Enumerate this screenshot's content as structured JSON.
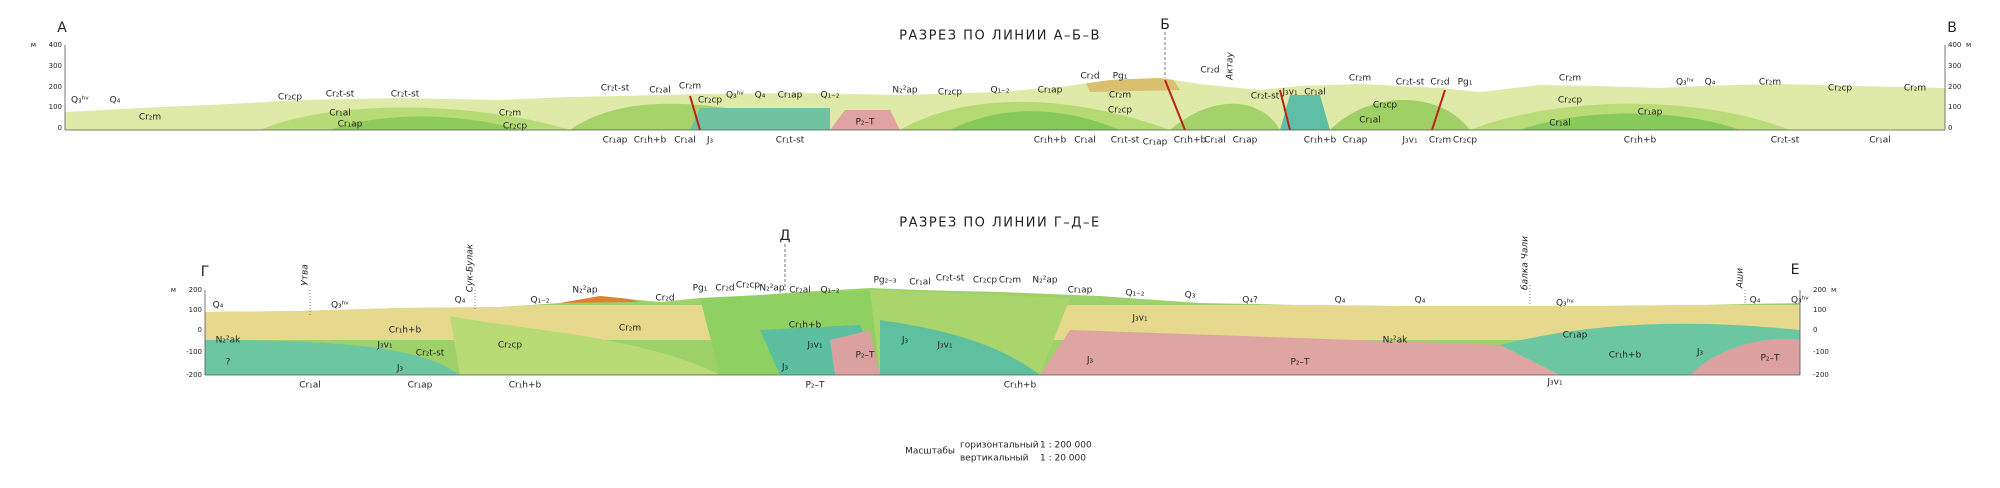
{
  "sections": [
    {
      "title": "РАЗРЕЗ ПО ЛИНИИ А–Б–В",
      "points": [
        "А",
        "Б",
        "В"
      ],
      "unit": "м",
      "ticks": [
        "400",
        "300",
        "200",
        "100",
        "0"
      ],
      "place_names": [
        "Актау"
      ],
      "formations": [
        "Q₃ʰᵛ",
        "Q₄",
        "Cr₂m",
        "Cr₂cp",
        "Cr₂t-st",
        "Cr₂t-st",
        "Cr₁al",
        "Cr₁ap",
        "Cr₂m",
        "Cr₂cp",
        "Cr₂t-st",
        "Cr₂al",
        "Cr₂m",
        "Cr₂cp",
        "Q₃ʰᵛ",
        "Q₄",
        "Cr₁ap",
        "Q₁₋₂",
        "N₂²ap",
        "Cr₂cp",
        "Q₁₋₂",
        "Cr₁ap",
        "Cr₂d",
        "Pg₁",
        "Cr₂d",
        "Cr₂m",
        "Cr₂cp",
        "P₂–T",
        "Cr₁ap",
        "Cr₁h+b",
        "Cr₁al",
        "J₃",
        "Cr₁t-st",
        "Cr₁h+b",
        "Cr₁al",
        "Cr₁t-st",
        "Cr₁ap",
        "Cr₁h+b",
        "Cr₁al",
        "Cr₁ap",
        "Cr₂t-st",
        "J₃v₁",
        "Cr₁al",
        "Cr₂m",
        "Cr₂t-st",
        "Cr₂d",
        "Pg₁",
        "Cr₂cp",
        "Cr₁al",
        "Cr₁h+b",
        "Cr₁ap",
        "J₃v₁",
        "Cr₂m",
        "Cr₂cp",
        "Cr₂m",
        "Cr₂cp",
        "Cr₁al",
        "Cr₁ap",
        "Q₃ʰᵛ",
        "Q₄",
        "Cr₂m",
        "Cr₂cp",
        "Cr₂m",
        "Cr₁h+b",
        "Cr₂t-st",
        "Cr₁al"
      ]
    },
    {
      "title": "РАЗРЕЗ ПО ЛИНИИ Г–Д–Е",
      "points": [
        "Г",
        "Д",
        "Е"
      ],
      "unit": "м",
      "ticks": [
        "200",
        "100",
        "0",
        "-100",
        "-200"
      ],
      "place_names": [
        "Утва",
        "Сук-Булак",
        "балка Чали",
        "Аши"
      ],
      "formations": [
        "Q₄",
        "Q₃ʰᵛ",
        "Cr₁h+b",
        "J₃v₁",
        "Cr₂t-st",
        "N₂²ak",
        "?",
        "J₃",
        "Q₄",
        "Q₁₋₂",
        "N₂²ap",
        "Cr₂d",
        "Cr₂cp",
        "Cr₂m",
        "Pg₁",
        "Cr₂d",
        "Cr₂cp",
        "N₂²ap",
        "Cr₂al",
        "Q₁₋₂",
        "Pg₂₋₃",
        "Cr₁al",
        "Cr₂t-st",
        "Cr₂cp",
        "Cr₂m",
        "N₂²ap",
        "Cr₁ap",
        "Q₁₋₂",
        "Q₃",
        "Q₄?",
        "Q₄",
        "Q₄",
        "Q₃ʰᵛ",
        "Q₄",
        "Q₃ʰᵛ",
        "Cr₁h+b",
        "J₃v₁",
        "J₃",
        "P₂–T",
        "J₃",
        "J₃v₁",
        "J₃v₁",
        "N₂²ak",
        "P₂–T",
        "Cr₁ap",
        "Cr₁h+b",
        "J₃",
        "P₂–T",
        "Cr₁al",
        "Cr₁ap",
        "Cr₁h+b",
        "P₂–T",
        "Cr₁h+b",
        "J₃v₁",
        "J₃"
      ]
    }
  ],
  "scale": {
    "label": "Масштабы",
    "horizontal_label": "горизонтальный",
    "horizontal": "1 : 200 000",
    "vertical_label": "вертикальный",
    "vertical": "1 : 20 000"
  }
}
